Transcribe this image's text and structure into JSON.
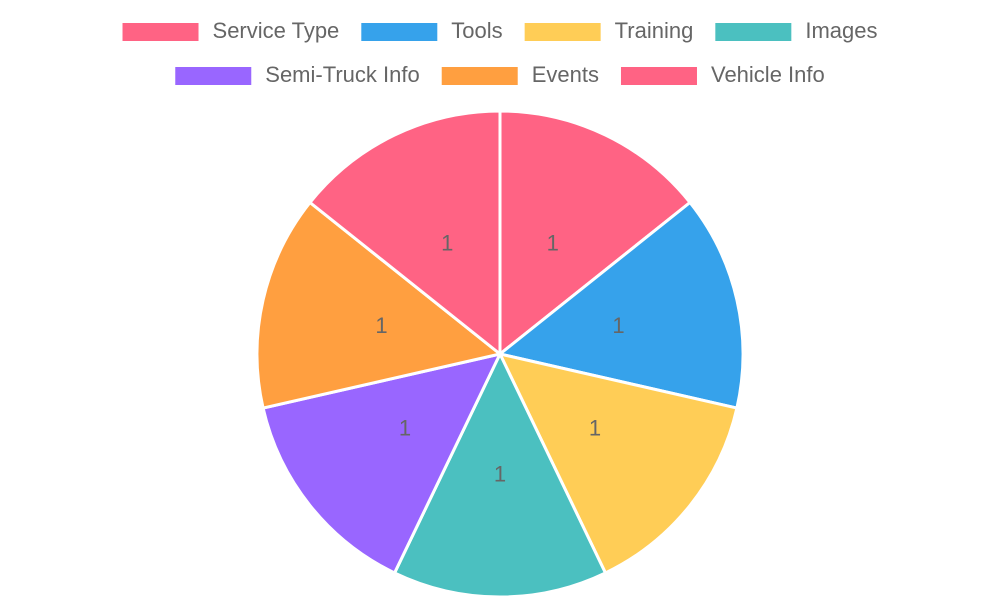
{
  "chart_data": {
    "type": "pie",
    "categories": [
      "Service Type",
      "Tools",
      "Training",
      "Images",
      "Semi-Truck Info",
      "Events",
      "Vehicle Info"
    ],
    "values": [
      1,
      1,
      1,
      1,
      1,
      1,
      1
    ],
    "colors": [
      "#ff6384",
      "#36a2eb",
      "#ffcd56",
      "#4bc0c0",
      "#9966ff",
      "#ff9f40",
      "#ff6384"
    ],
    "legend": "top"
  }
}
